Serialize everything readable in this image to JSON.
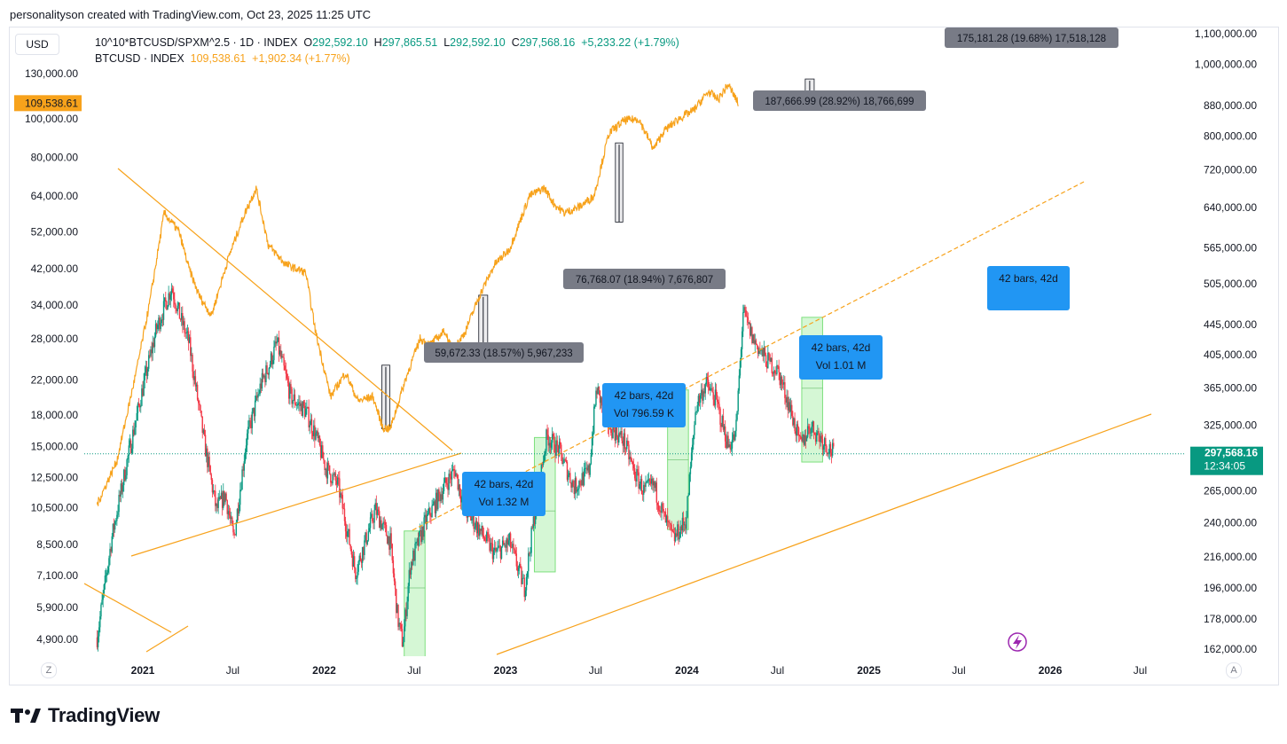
{
  "header": {
    "credit": "personalityson created with TradingView.com, Oct 23, 2025 11:25 UTC",
    "currency": "USD"
  },
  "legend": {
    "main_symbol": "10^10*BTCUSD/SPXM^2.5 · 1D · INDEX",
    "o_label": "O",
    "o_value": "292,592.10",
    "h_label": "H",
    "h_value": "297,865.51",
    "l_label": "L",
    "l_value": "292,592.10",
    "c_label": "C",
    "c_value": "297,568.16",
    "change": "+5,233.22 (+1.79%)",
    "secondary_symbol": "BTCUSD · INDEX",
    "secondary_value": "109,538.61",
    "secondary_change": "+1,902.34 (+1.77%)"
  },
  "footer": {
    "brand": "TradingView",
    "left_axis_button": "Z",
    "right_axis_button": "A"
  },
  "colors": {
    "up": "#089981",
    "down": "#f23645",
    "btc": "#f7a21b",
    "trend": "#f7a21b",
    "label_gray": "#787b86",
    "label_blue": "#2196f3",
    "green_zone": "#b2f0b2"
  },
  "chart_data": {
    "type": "candlestick",
    "series": [
      {
        "name": "10^10*BTCUSD/SPXM^2.5",
        "axis": "right",
        "last": 297568.16,
        "last_label": "297,568.16",
        "countdown": "12:34:05"
      },
      {
        "name": "BTCUSD",
        "axis": "left",
        "last": 109538.61,
        "last_label": "109,538.61"
      }
    ],
    "x_ticks": [
      "2021",
      "Jul",
      "2022",
      "Jul",
      "2023",
      "Jul",
      "2024",
      "Jul",
      "2025",
      "Jul",
      "2026",
      "Jul"
    ],
    "left_axis_ticks": [
      "130,000.00",
      "100,000.00",
      "80,000.00",
      "64,000.00",
      "52,000.00",
      "42,000.00",
      "34,000.00",
      "28,000.00",
      "22,000.00",
      "18,000.00",
      "15,000.00",
      "12,500.00",
      "10,500.00",
      "8,500.00",
      "7,100.00",
      "5,900.00",
      "4,900.00"
    ],
    "right_axis_ticks": [
      "1,100,000.00",
      "1,000,000.00",
      "880,000.00",
      "800,000.00",
      "720,000.00",
      "640,000.00",
      "565,000.00",
      "505,000.00",
      "445,000.00",
      "405,000.00",
      "365,000.00",
      "325,000.00",
      "265,000.00",
      "240,000.00",
      "216,000.00",
      "196,000.00",
      "178,000.00",
      "162,000.00"
    ],
    "log_scale": true,
    "annotations": {
      "price_ranges": [
        {
          "label": "59,672.33 (18.57%) 5,967,233"
        },
        {
          "label": "76,768.07 (18.94%) 7,676,807"
        },
        {
          "label": "187,666.99 (28.92%) 18,766,699"
        },
        {
          "label": "175,181.28 (19.68%) 17,518,128"
        }
      ],
      "date_ranges": [
        {
          "line1": "42 bars, 42d",
          "line2": "Vol 1.32 M"
        },
        {
          "line1": "42 bars, 42d",
          "line2": "Vol 796.59 K"
        },
        {
          "line1": "42 bars, 42d",
          "line2": "Vol 1.01 M"
        },
        {
          "line1": "42 bars, 42d",
          "line2": ""
        }
      ]
    }
  }
}
